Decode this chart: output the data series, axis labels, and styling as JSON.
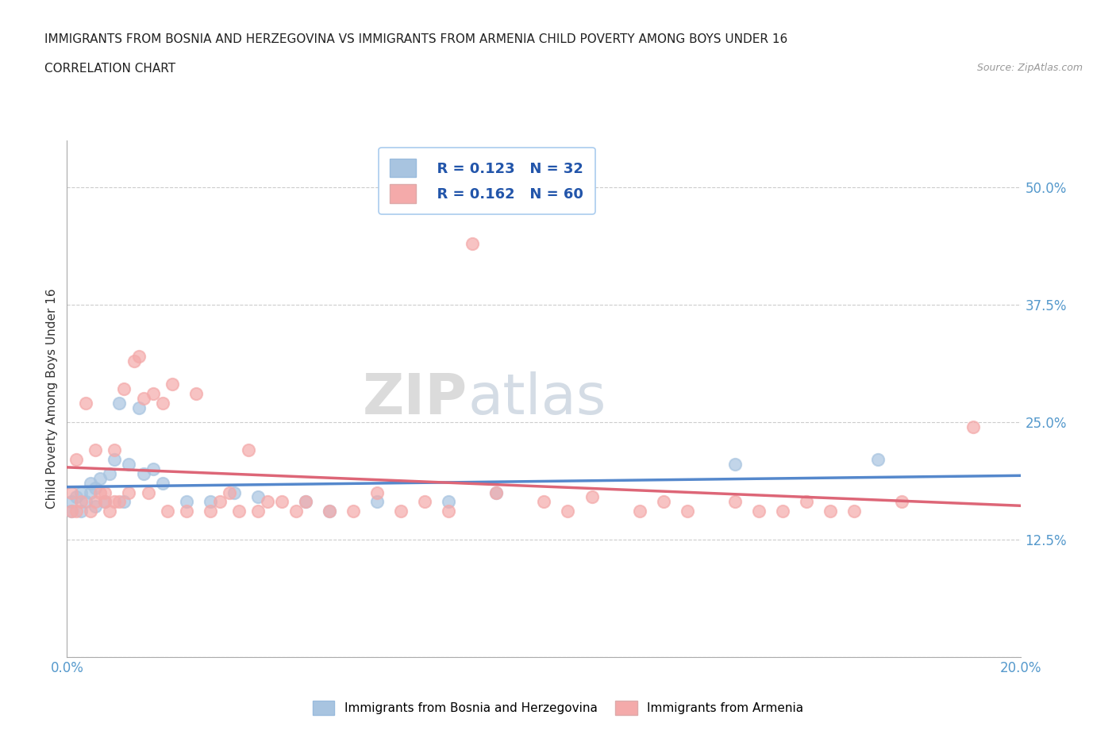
{
  "title_line1": "IMMIGRANTS FROM BOSNIA AND HERZEGOVINA VS IMMIGRANTS FROM ARMENIA CHILD POVERTY AMONG BOYS UNDER 16",
  "title_line2": "CORRELATION CHART",
  "source_text": "Source: ZipAtlas.com",
  "ylabel": "Child Poverty Among Boys Under 16",
  "xlim": [
    0.0,
    0.2
  ],
  "ylim": [
    0.0,
    0.55
  ],
  "xticks": [
    0.0,
    0.04,
    0.08,
    0.12,
    0.16,
    0.2
  ],
  "xticklabels": [
    "0.0%",
    "",
    "",
    "",
    "",
    "20.0%"
  ],
  "ytick_positions": [
    0.0,
    0.125,
    0.25,
    0.375,
    0.5
  ],
  "ytick_labels": [
    "",
    "12.5%",
    "25.0%",
    "37.5%",
    "50.0%"
  ],
  "bosnia_color": "#A8C4E0",
  "armenia_color": "#F4AAAA",
  "bosnia_line_color": "#5588CC",
  "armenia_line_color": "#DD6677",
  "legend_bosnia_R": "R = 0.123",
  "legend_bosnia_N": "N = 32",
  "legend_armenia_R": "R = 0.162",
  "legend_armenia_N": "N = 60",
  "bosnia_scatter_x": [
    0.001,
    0.001,
    0.002,
    0.003,
    0.003,
    0.004,
    0.005,
    0.005,
    0.006,
    0.006,
    0.007,
    0.008,
    0.009,
    0.01,
    0.011,
    0.012,
    0.013,
    0.015,
    0.016,
    0.018,
    0.02,
    0.025,
    0.03,
    0.035,
    0.04,
    0.05,
    0.055,
    0.065,
    0.08,
    0.09,
    0.14,
    0.17
  ],
  "bosnia_scatter_y": [
    0.155,
    0.165,
    0.17,
    0.155,
    0.175,
    0.165,
    0.175,
    0.185,
    0.16,
    0.18,
    0.19,
    0.165,
    0.195,
    0.21,
    0.27,
    0.165,
    0.205,
    0.265,
    0.195,
    0.2,
    0.185,
    0.165,
    0.165,
    0.175,
    0.17,
    0.165,
    0.155,
    0.165,
    0.165,
    0.175,
    0.205,
    0.21
  ],
  "armenia_scatter_x": [
    0.001,
    0.001,
    0.002,
    0.002,
    0.003,
    0.004,
    0.005,
    0.006,
    0.006,
    0.007,
    0.008,
    0.008,
    0.009,
    0.01,
    0.01,
    0.011,
    0.012,
    0.013,
    0.014,
    0.015,
    0.016,
    0.017,
    0.018,
    0.02,
    0.021,
    0.022,
    0.025,
    0.027,
    0.03,
    0.032,
    0.034,
    0.036,
    0.038,
    0.04,
    0.042,
    0.045,
    0.048,
    0.05,
    0.055,
    0.06,
    0.065,
    0.07,
    0.075,
    0.08,
    0.085,
    0.09,
    0.1,
    0.105,
    0.11,
    0.12,
    0.125,
    0.13,
    0.14,
    0.145,
    0.15,
    0.155,
    0.16,
    0.165,
    0.175,
    0.19
  ],
  "armenia_scatter_y": [
    0.155,
    0.175,
    0.155,
    0.21,
    0.165,
    0.27,
    0.155,
    0.22,
    0.165,
    0.175,
    0.165,
    0.175,
    0.155,
    0.165,
    0.22,
    0.165,
    0.285,
    0.175,
    0.315,
    0.32,
    0.275,
    0.175,
    0.28,
    0.27,
    0.155,
    0.29,
    0.155,
    0.28,
    0.155,
    0.165,
    0.175,
    0.155,
    0.22,
    0.155,
    0.165,
    0.165,
    0.155,
    0.165,
    0.155,
    0.155,
    0.175,
    0.155,
    0.165,
    0.155,
    0.44,
    0.175,
    0.165,
    0.155,
    0.17,
    0.155,
    0.165,
    0.155,
    0.165,
    0.155,
    0.155,
    0.165,
    0.155,
    0.155,
    0.165,
    0.245
  ],
  "background_color": "#FFFFFF",
  "grid_color": "#CCCCCC"
}
